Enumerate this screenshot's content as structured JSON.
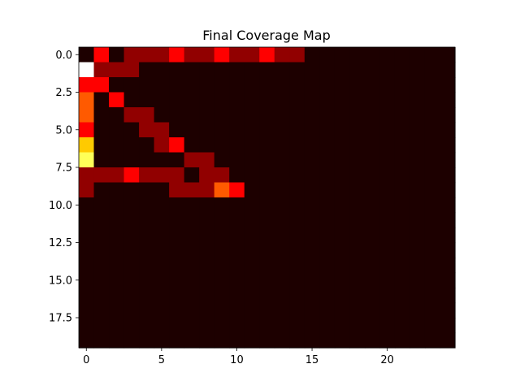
{
  "chart_data": {
    "type": "heatmap",
    "title": "Final Coverage Map",
    "xlabel": "",
    "ylabel": "",
    "colormap": "hot",
    "rows": 20,
    "cols": 25,
    "xlim": [
      -0.5,
      24.5
    ],
    "ylim": [
      19.5,
      -0.5
    ],
    "xticks": [
      0,
      5,
      10,
      15,
      20
    ],
    "xtick_labels": [
      "0",
      "5",
      "10",
      "15",
      "20"
    ],
    "yticks": [
      0,
      2.5,
      5,
      7.5,
      10,
      12.5,
      15,
      17.5
    ],
    "ytick_labels": [
      "0.0",
      "2.5",
      "5.0",
      "7.5",
      "10.0",
      "12.5",
      "15.0",
      "17.5"
    ],
    "value_range": [
      0,
      6
    ],
    "values": [
      [
        0,
        2,
        0,
        1,
        1,
        1,
        2,
        1,
        1,
        2,
        1,
        1,
        2,
        1,
        1,
        0,
        0,
        0,
        0,
        0,
        0,
        0,
        0,
        0,
        0
      ],
      [
        6,
        1,
        1,
        1,
        0,
        0,
        0,
        0,
        0,
        0,
        0,
        0,
        0,
        0,
        0,
        0,
        0,
        0,
        0,
        0,
        0,
        0,
        0,
        0,
        0
      ],
      [
        2,
        2,
        0,
        0,
        0,
        0,
        0,
        0,
        0,
        0,
        0,
        0,
        0,
        0,
        0,
        0,
        0,
        0,
        0,
        0,
        0,
        0,
        0,
        0,
        0
      ],
      [
        3,
        0,
        2,
        0,
        0,
        0,
        0,
        0,
        0,
        0,
        0,
        0,
        0,
        0,
        0,
        0,
        0,
        0,
        0,
        0,
        0,
        0,
        0,
        0,
        0
      ],
      [
        3,
        0,
        0,
        1,
        1,
        0,
        0,
        0,
        0,
        0,
        0,
        0,
        0,
        0,
        0,
        0,
        0,
        0,
        0,
        0,
        0,
        0,
        0,
        0,
        0
      ],
      [
        2,
        0,
        0,
        0,
        1,
        1,
        0,
        0,
        0,
        0,
        0,
        0,
        0,
        0,
        0,
        0,
        0,
        0,
        0,
        0,
        0,
        0,
        0,
        0,
        0
      ],
      [
        4,
        0,
        0,
        0,
        0,
        1,
        2,
        0,
        0,
        0,
        0,
        0,
        0,
        0,
        0,
        0,
        0,
        0,
        0,
        0,
        0,
        0,
        0,
        0,
        0
      ],
      [
        5,
        0,
        0,
        0,
        0,
        0,
        0,
        1,
        1,
        0,
        0,
        0,
        0,
        0,
        0,
        0,
        0,
        0,
        0,
        0,
        0,
        0,
        0,
        0,
        0
      ],
      [
        1,
        1,
        1,
        2,
        1,
        1,
        1,
        0,
        1,
        1,
        0,
        0,
        0,
        0,
        0,
        0,
        0,
        0,
        0,
        0,
        0,
        0,
        0,
        0,
        0
      ],
      [
        1,
        0,
        0,
        0,
        0,
        0,
        1,
        1,
        1,
        3,
        2,
        0,
        0,
        0,
        0,
        0,
        0,
        0,
        0,
        0,
        0,
        0,
        0,
        0,
        0
      ],
      [
        0,
        0,
        0,
        0,
        0,
        0,
        0,
        0,
        0,
        0,
        0,
        0,
        0,
        0,
        0,
        0,
        0,
        0,
        0,
        0,
        0,
        0,
        0,
        0,
        0
      ],
      [
        0,
        0,
        0,
        0,
        0,
        0,
        0,
        0,
        0,
        0,
        0,
        0,
        0,
        0,
        0,
        0,
        0,
        0,
        0,
        0,
        0,
        0,
        0,
        0,
        0
      ],
      [
        0,
        0,
        0,
        0,
        0,
        0,
        0,
        0,
        0,
        0,
        0,
        0,
        0,
        0,
        0,
        0,
        0,
        0,
        0,
        0,
        0,
        0,
        0,
        0,
        0
      ],
      [
        0,
        0,
        0,
        0,
        0,
        0,
        0,
        0,
        0,
        0,
        0,
        0,
        0,
        0,
        0,
        0,
        0,
        0,
        0,
        0,
        0,
        0,
        0,
        0,
        0
      ],
      [
        0,
        0,
        0,
        0,
        0,
        0,
        0,
        0,
        0,
        0,
        0,
        0,
        0,
        0,
        0,
        0,
        0,
        0,
        0,
        0,
        0,
        0,
        0,
        0,
        0
      ],
      [
        0,
        0,
        0,
        0,
        0,
        0,
        0,
        0,
        0,
        0,
        0,
        0,
        0,
        0,
        0,
        0,
        0,
        0,
        0,
        0,
        0,
        0,
        0,
        0,
        0
      ],
      [
        0,
        0,
        0,
        0,
        0,
        0,
        0,
        0,
        0,
        0,
        0,
        0,
        0,
        0,
        0,
        0,
        0,
        0,
        0,
        0,
        0,
        0,
        0,
        0,
        0
      ],
      [
        0,
        0,
        0,
        0,
        0,
        0,
        0,
        0,
        0,
        0,
        0,
        0,
        0,
        0,
        0,
        0,
        0,
        0,
        0,
        0,
        0,
        0,
        0,
        0,
        0
      ],
      [
        0,
        0,
        0,
        0,
        0,
        0,
        0,
        0,
        0,
        0,
        0,
        0,
        0,
        0,
        0,
        0,
        0,
        0,
        0,
        0,
        0,
        0,
        0,
        0,
        0
      ],
      [
        0,
        0,
        0,
        0,
        0,
        0,
        0,
        0,
        0,
        0,
        0,
        0,
        0,
        0,
        0,
        0,
        0,
        0,
        0,
        0,
        0,
        0,
        0,
        0,
        0
      ]
    ],
    "grid": false,
    "legend": "none"
  }
}
